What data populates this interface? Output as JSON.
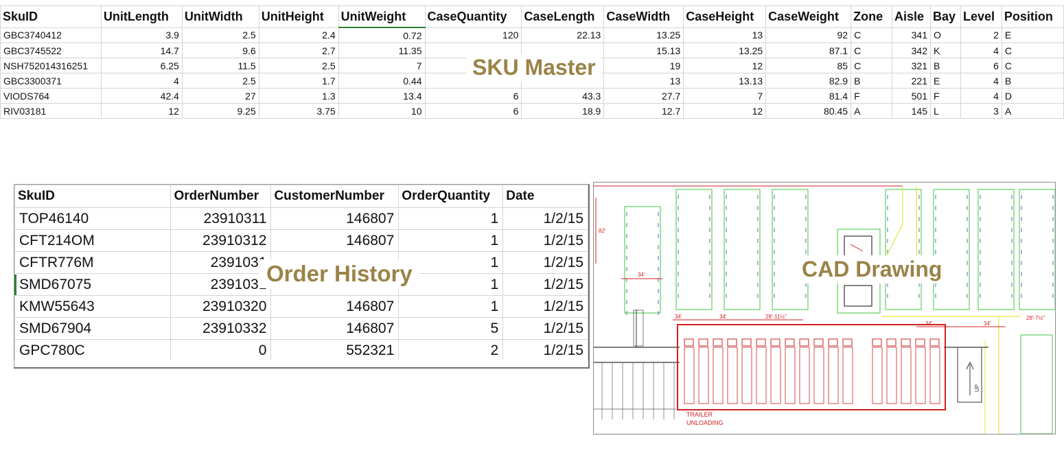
{
  "sku_master": {
    "title": "SKU Master",
    "columns": [
      "SkuID",
      "UnitLength",
      "UnitWidth",
      "UnitHeight",
      "UnitWeight",
      "CaseQuantity",
      "CaseLength",
      "CaseWidth",
      "CaseHeight",
      "CaseWeight",
      "Zone",
      "Aisle",
      "Bay",
      "Level",
      "Position"
    ],
    "rows": [
      [
        "GBC3740412",
        "3.9",
        "2.5",
        "2.4",
        "0.72",
        "120",
        "22.13",
        "13.25",
        "13",
        "92",
        "C",
        "341",
        "O",
        "2",
        "E"
      ],
      [
        "GBC3745522",
        "14.7",
        "9.6",
        "2.7",
        "11.35",
        "",
        "",
        "15.13",
        "13.25",
        "87.1",
        "C",
        "342",
        "K",
        "4",
        "C"
      ],
      [
        "NSH752014316251",
        "6.25",
        "11.5",
        "2.5",
        "7",
        "",
        "",
        "19",
        "12",
        "85",
        "C",
        "321",
        "B",
        "6",
        "C"
      ],
      [
        "GBC3300371",
        "4",
        "2.5",
        "1.7",
        "0.44",
        "",
        "",
        "13",
        "13.13",
        "82.9",
        "B",
        "221",
        "E",
        "4",
        "B"
      ],
      [
        "VIODS764",
        "42.4",
        "27",
        "1.3",
        "13.4",
        "6",
        "43.3",
        "27.7",
        "7",
        "81.4",
        "F",
        "501",
        "F",
        "4",
        "D"
      ],
      [
        "RIV03181",
        "12",
        "9.25",
        "3.75",
        "10",
        "6",
        "18.9",
        "12.7",
        "12",
        "80.45",
        "A",
        "145",
        "L",
        "3",
        "A"
      ]
    ]
  },
  "order_history": {
    "title": "Order History",
    "columns": [
      "SkuID",
      "OrderNumber",
      "CustomerNumber",
      "OrderQuantity",
      "Date"
    ],
    "rows": [
      [
        "TOP46140",
        "23910311",
        "146807",
        "1",
        "1/2/15"
      ],
      [
        "CFT214OM",
        "23910312",
        "146807",
        "1",
        "1/2/15"
      ],
      [
        "CFTR776M",
        "2391031",
        "",
        "1",
        "1/2/15"
      ],
      [
        "SMD67075",
        "2391031",
        "",
        "1",
        "1/2/15"
      ],
      [
        "KMW55643",
        "23910320",
        "146807",
        "1",
        "1/2/15"
      ],
      [
        "SMD67904",
        "23910332",
        "146807",
        "5",
        "1/2/15"
      ],
      [
        "GPC780C",
        "0",
        "552321",
        "2",
        "1/2/15"
      ]
    ]
  },
  "cad_drawing": {
    "title": "CAD Drawing",
    "dimensions": [
      "82'",
      "34'",
      "34'",
      "34'",
      "28'-11½\"",
      "34'",
      "34'",
      "28'-7½\""
    ],
    "labels": {
      "trailer_line1": "TRAILER",
      "trailer_line2": "UNLOADING",
      "up": "UP"
    },
    "colors": {
      "dimension": "#d11f1f",
      "walls": "#333333",
      "zone_green": "#3cc43c",
      "zone_yellow": "#e8e23a"
    }
  }
}
